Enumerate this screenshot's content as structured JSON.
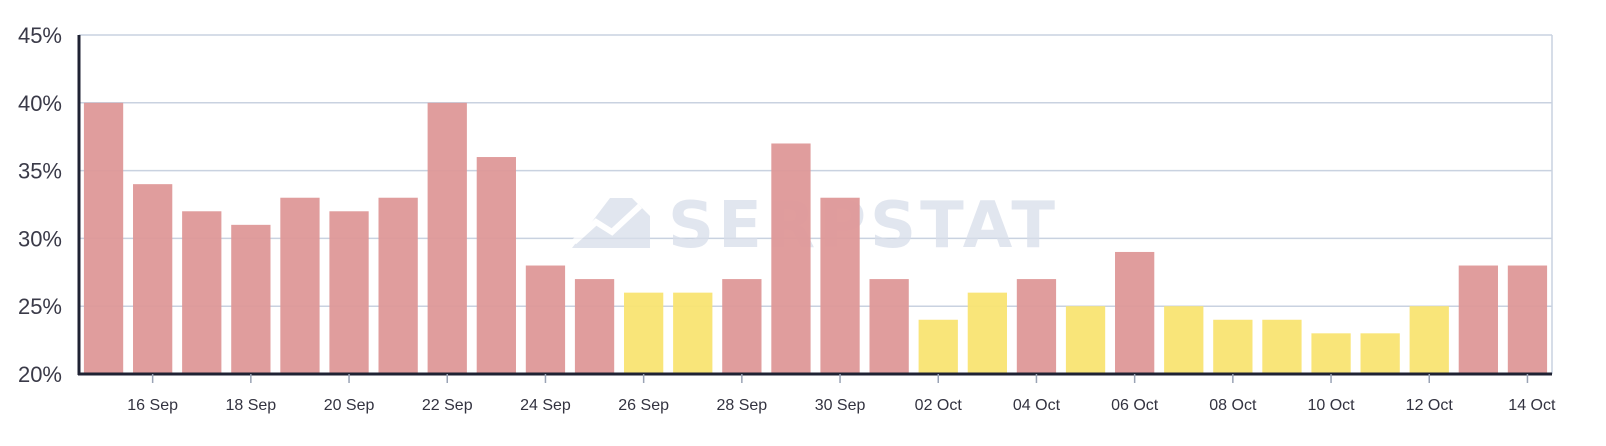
{
  "watermark": {
    "text": "SERPSTAT",
    "icon": "serpstat-logo-icon"
  },
  "colors": {
    "high": "#de9898",
    "low": "#f9e472",
    "grid": "#c9d2e0",
    "axis": "#1f2233"
  },
  "chart_data": {
    "type": "bar",
    "title": "",
    "xlabel": "",
    "ylabel": "",
    "ylim": [
      20,
      45
    ],
    "y_ticks": [
      20,
      25,
      30,
      35,
      40,
      45
    ],
    "y_tick_labels": [
      "20%",
      "25%",
      "30%",
      "35%",
      "40%",
      "45%"
    ],
    "grid": true,
    "legend": "none",
    "categories": [
      "15 Sep",
      "16 Sep",
      "17 Sep",
      "18 Sep",
      "19 Sep",
      "20 Sep",
      "21 Sep",
      "22 Sep",
      "23 Sep",
      "24 Sep",
      "25 Sep",
      "26 Sep",
      "27 Sep",
      "28 Sep",
      "29 Sep",
      "30 Sep",
      "01 Oct",
      "02 Oct",
      "03 Oct",
      "04 Oct",
      "05 Oct",
      "06 Oct",
      "07 Oct",
      "08 Oct",
      "09 Oct",
      "10 Oct",
      "11 Oct",
      "12 Oct",
      "13 Oct",
      "14 Oct"
    ],
    "values": [
      40,
      34,
      32,
      31,
      33,
      32,
      33,
      40,
      36,
      28,
      27,
      26,
      26,
      27,
      37,
      33,
      27,
      24,
      26,
      27,
      25,
      29,
      25,
      24,
      24,
      23,
      23,
      25,
      28,
      28
    ],
    "bar_colors": [
      "high",
      "high",
      "high",
      "high",
      "high",
      "high",
      "high",
      "high",
      "high",
      "high",
      "high",
      "low",
      "low",
      "high",
      "high",
      "high",
      "high",
      "low",
      "low",
      "high",
      "low",
      "high",
      "low",
      "low",
      "low",
      "low",
      "low",
      "low",
      "high",
      "high"
    ],
    "x_tick_labels": [
      "16 Sep",
      "18 Sep",
      "20 Sep",
      "22 Sep",
      "24 Sep",
      "26 Sep",
      "28 Sep",
      "30 Sep",
      "02 Oct",
      "04 Oct",
      "06 Oct",
      "08 Oct",
      "10 Oct",
      "12 Oct",
      "14 Oct"
    ]
  }
}
